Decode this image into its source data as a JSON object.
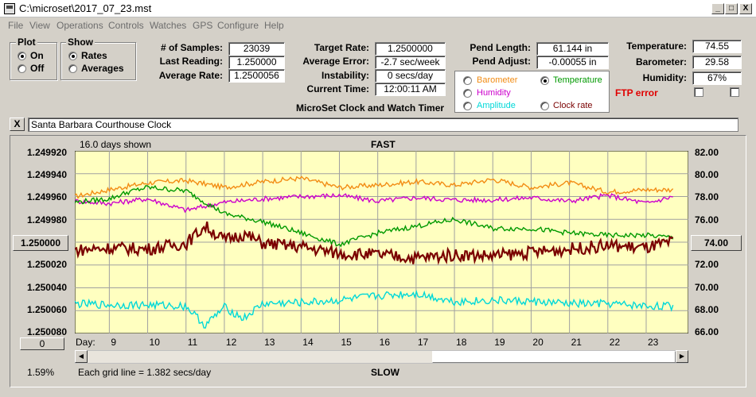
{
  "window": {
    "title": "C:\\microset\\2017_07_23.mst",
    "min_glyph": "_",
    "max_glyph": "□",
    "close_glyph": "X"
  },
  "menu": [
    "File",
    "View",
    "Operations",
    "Controls",
    "Watches",
    "GPS",
    "Configure",
    "Help"
  ],
  "plot_group": {
    "title": "Plot",
    "options": [
      "On",
      "Off"
    ],
    "selected": "On"
  },
  "show_group": {
    "title": "Show",
    "options": [
      "Rates",
      "Averages"
    ],
    "selected": "Rates"
  },
  "stats": {
    "samples_label": "# of Samples:",
    "samples": "23039",
    "last_label": "Last Reading:",
    "last": "1.250000",
    "avg_rate_label": "Average Rate:",
    "avg_rate": "1.2500056",
    "target_label": "Target Rate:",
    "target": "1.2500000",
    "avg_err_label": "Average Error:",
    "avg_err": "-2.7 sec/week",
    "instab_label": "Instability:",
    "instab": "0 secs/day",
    "time_label": "Current Time:",
    "time": "12:00:11 AM",
    "pend_len_label": "Pend Length:",
    "pend_len": "61.144 in",
    "pend_adj_label": "Pend Adjust:",
    "pend_adj": "-0.00055 in",
    "temp_label": "Temperature:",
    "temp": "74.55",
    "baro_label": "Barometer:",
    "baro": "29.58",
    "hum_label": "Humidity:",
    "hum": "67%"
  },
  "subtitle": "MicroSet Clock and Watch Timer",
  "ftp_error": "FTP error",
  "sensor_options": [
    {
      "label": "Barometer",
      "color": "#f28c14",
      "selected": false
    },
    {
      "label": "Temperature",
      "color": "#009900",
      "selected": true
    },
    {
      "label": "Humidity",
      "color": "#cc00cc",
      "selected": false
    },
    {
      "label": "Clock rate",
      "color": "#7a0000",
      "selected": false
    },
    {
      "label": "Amplitude",
      "color": "#00d8d8",
      "selected": false
    }
  ],
  "clock_name": "Santa Barbara Courthouse Clock",
  "close_x": "X",
  "chart": {
    "days_shown": "16.0 days shown",
    "top_label": "FAST",
    "bottom_label": "SLOW",
    "grid_note": "Each grid line = 1.382 secs/day",
    "percent": "1.59%",
    "left_axis": [
      "1.249920",
      "1.249940",
      "1.249960",
      "1.249980",
      "1.250000",
      "1.250020",
      "1.250040",
      "1.250060",
      "1.250080"
    ],
    "right_axis": [
      "82.00",
      "80.00",
      "78.00",
      "76.00",
      "74.00",
      "72.00",
      "70.00",
      "68.00",
      "66.00"
    ],
    "day_prefix": "Day:",
    "days": [
      "9",
      "10",
      "11",
      "12",
      "13",
      "14",
      "15",
      "16",
      "17",
      "18",
      "19",
      "20",
      "21",
      "22",
      "23"
    ],
    "left_center_btn": "1.250000",
    "right_center_btn": "74.00",
    "zero_btn": "0"
  },
  "chart_data": {
    "type": "line",
    "x_label": "Day",
    "x_range": [
      8.1,
      24.1
    ],
    "y_left_range": [
      1.24992,
      1.25008
    ],
    "y_right_range": [
      66.0,
      82.0
    ],
    "grid": true,
    "series": [
      {
        "name": "Barometer",
        "color": "#f28c14",
        "x": [
          8.1,
          9,
          10,
          11,
          12,
          13,
          14,
          15,
          16,
          17,
          18,
          19,
          20,
          21,
          22,
          23,
          23.7
        ],
        "y": [
          78.0,
          78.6,
          79.2,
          79.4,
          78.8,
          79.3,
          79.6,
          78.8,
          79.0,
          79.3,
          79.0,
          79.5,
          78.8,
          79.2,
          78.4,
          78.6,
          78.6
        ]
      },
      {
        "name": "Humidity",
        "color": "#cc00cc",
        "x": [
          8.1,
          9,
          10,
          11,
          12,
          13,
          14,
          15,
          16,
          17,
          18,
          19,
          20,
          21,
          22,
          23,
          23.7
        ],
        "y": [
          77.6,
          77.4,
          77.8,
          76.8,
          77.5,
          77.8,
          78.0,
          78.1,
          77.6,
          77.9,
          77.7,
          77.7,
          77.9,
          77.6,
          78.1,
          77.4,
          78.0
        ]
      },
      {
        "name": "Temperature",
        "color": "#009900",
        "x": [
          8.1,
          9,
          9.5,
          10,
          11,
          12,
          13,
          14,
          15,
          16,
          17,
          18,
          19,
          20,
          21,
          22,
          23,
          23.7
        ],
        "y": [
          77.5,
          77.8,
          78.4,
          78.8,
          78.5,
          76.5,
          75.8,
          74.8,
          73.8,
          74.8,
          75.4,
          76.0,
          75.2,
          75.2,
          74.8,
          74.6,
          74.6,
          74.4
        ]
      },
      {
        "name": "Clock rate",
        "color": "#7a0000",
        "x": [
          8.1,
          9,
          10,
          11,
          11.5,
          12,
          12.5,
          13,
          14,
          15,
          16,
          17,
          18,
          19,
          20,
          21,
          22,
          23,
          23.7
        ],
        "y": [
          73.3,
          73.5,
          73.4,
          73.9,
          75.4,
          74.2,
          74.7,
          73.9,
          73.6,
          73.0,
          72.9,
          72.6,
          72.9,
          72.8,
          73.1,
          73.4,
          73.7,
          73.5,
          74.0
        ]
      },
      {
        "name": "Amplitude",
        "color": "#00d8d8",
        "x": [
          8.1,
          9,
          10,
          11,
          11.5,
          12,
          12.5,
          13,
          14,
          15,
          16,
          17,
          18,
          19,
          20,
          21,
          22,
          23,
          23.7
        ],
        "y": [
          68.6,
          68.5,
          68.5,
          68.4,
          66.7,
          68.3,
          67.3,
          68.6,
          68.7,
          68.9,
          69.3,
          69.5,
          68.8,
          68.9,
          68.8,
          68.6,
          68.6,
          68.4,
          68.4
        ]
      }
    ]
  }
}
